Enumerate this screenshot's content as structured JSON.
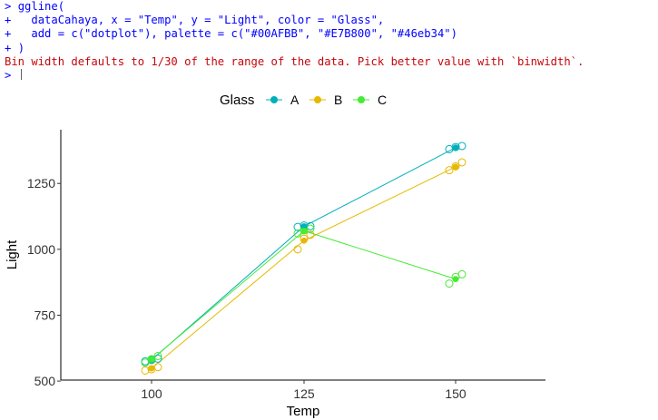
{
  "console": {
    "lines": [
      {
        "prompt": ">",
        "text": "ggline(",
        "kind": "code"
      },
      {
        "prompt": "+",
        "text": "  dataCahaya, x = \"Temp\", y = \"Light\", color = \"Glass\",",
        "kind": "code"
      },
      {
        "prompt": "+",
        "text": "  add = c(\"dotplot\"), palette = c(\"#00AFBB\", \"#E7B800\", \"#46eb34\")",
        "kind": "code"
      },
      {
        "prompt": "+",
        "text": ")",
        "kind": "code"
      },
      {
        "prompt": "",
        "text": "Bin width defaults to 1/30 of the range of the data. Pick better value with `binwidth`.",
        "kind": "error"
      },
      {
        "prompt": ">",
        "text": "",
        "kind": "input"
      }
    ]
  },
  "chart_data": {
    "type": "line",
    "xlabel": "Temp",
    "ylabel": "Light",
    "categories": [
      "100",
      "125",
      "150"
    ],
    "yticks": [
      500,
      750,
      1000,
      1250
    ],
    "ylim": [
      490,
      1440
    ],
    "legend": {
      "title": "Glass",
      "position": "top"
    },
    "grid": false,
    "series": [
      {
        "name": "A",
        "color": "#00AFBB",
        "means": [
          580,
          1087,
          1386
        ],
        "points": [
          [
            575,
            580,
            585
          ],
          [
            1085,
            1090,
            1088
          ],
          [
            1380,
            1388,
            1392
          ]
        ]
      },
      {
        "name": "B",
        "color": "#E7B800",
        "means": [
          548,
          1033,
          1313
        ],
        "points": [
          [
            540,
            545,
            553
          ],
          [
            1000,
            1040,
            1055
          ],
          [
            1300,
            1315,
            1330
          ]
        ]
      },
      {
        "name": "C",
        "color": "#46eb34",
        "means": [
          582,
          1070,
          887
        ],
        "points": [
          [
            570,
            583,
            595
          ],
          [
            1060,
            1072,
            1078
          ],
          [
            870,
            895,
            905
          ]
        ]
      }
    ]
  }
}
